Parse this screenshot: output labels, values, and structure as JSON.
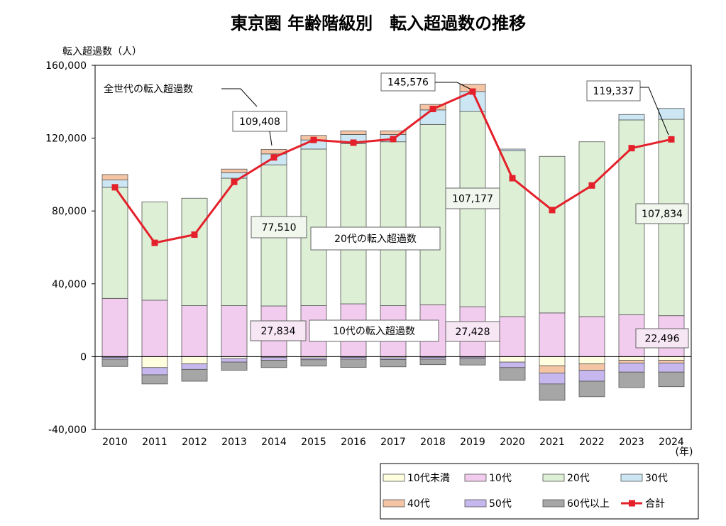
{
  "chart_data": {
    "type": "bar",
    "stacked": true,
    "title": "東京圏 年齢階級別　転入超過数の推移",
    "ylabel": "転入超過数（人）",
    "xunit": "(年)",
    "ylim": [
      -40000,
      160000
    ],
    "yticks": [
      -40000,
      0,
      40000,
      80000,
      120000,
      160000
    ],
    "ytick_labels": [
      "-40,000",
      "0",
      "40,000",
      "80,000",
      "120,000",
      "160,000"
    ],
    "grid": false,
    "legend_position": "bottom-right",
    "categories": [
      "2010",
      "2011",
      "2012",
      "2013",
      "2014",
      "2015",
      "2016",
      "2017",
      "2018",
      "2019",
      "2020",
      "2021",
      "2022",
      "2023",
      "2024"
    ],
    "series": [
      {
        "name": "10代未満",
        "color": "#FFFFE0",
        "values": [
          -400,
          -6000,
          -4000,
          -1000,
          -500,
          -700,
          -400,
          -600,
          -400,
          -300,
          -3000,
          -5000,
          -4000,
          -2000,
          -2000
        ]
      },
      {
        "name": "10代",
        "color": "#F2CCEE",
        "values": [
          32000,
          31000,
          28000,
          28000,
          27834,
          28000,
          29000,
          28000,
          28500,
          27428,
          22000,
          24000,
          22000,
          23000,
          22496
        ]
      },
      {
        "name": "20代",
        "color": "#DDF0D6",
        "values": [
          61000,
          54000,
          59000,
          70000,
          77510,
          86000,
          88000,
          90000,
          99000,
          107177,
          91000,
          86000,
          96000,
          107000,
          107834
        ]
      },
      {
        "name": "30代",
        "color": "#CCE6F4",
        "values": [
          4000,
          0,
          0,
          3000,
          6000,
          5000,
          5000,
          4000,
          8000,
          11000,
          1000,
          0,
          0,
          3000,
          6000
        ]
      },
      {
        "name": "40代",
        "color": "#F4C4A4",
        "values": [
          3000,
          0,
          0,
          2000,
          2500,
          2500,
          2000,
          2000,
          3000,
          4000,
          0,
          -4000,
          -3500,
          -1500,
          -1500
        ]
      },
      {
        "name": "50代",
        "color": "#C6B8EE",
        "values": [
          -1000,
          -4000,
          -3000,
          -2000,
          -1500,
          -1000,
          -1000,
          -1000,
          -1000,
          -800,
          -3000,
          -6000,
          -6000,
          -5000,
          -5000
        ]
      },
      {
        "name": "60代以上",
        "color": "#A6A6A6",
        "values": [
          -4000,
          -5000,
          -6500,
          -4500,
          -4000,
          -3500,
          -4500,
          -4000,
          -3000,
          -3500,
          -7000,
          -9000,
          -8500,
          -8500,
          -8000
        ]
      }
    ],
    "total": {
      "name": "合計",
      "color": "#E4202A",
      "values": [
        93000,
        62500,
        67000,
        96000,
        109408,
        119000,
        117500,
        119500,
        136000,
        145576,
        98000,
        80500,
        94000,
        114500,
        119337
      ]
    },
    "annotations": {
      "series_label": "全世代の転入超過数",
      "total_2014": "109,408",
      "total_2019": "145,576",
      "total_2024": "119,337",
      "twenties_label": "20代の転入超過数",
      "twenties_2014": "77,510",
      "twenties_2019": "107,177",
      "twenties_2024": "107,834",
      "teens_label": "10代の転入超過数",
      "teens_2014": "27,834",
      "teens_2019": "27,428",
      "teens_2024": "22,496"
    }
  }
}
